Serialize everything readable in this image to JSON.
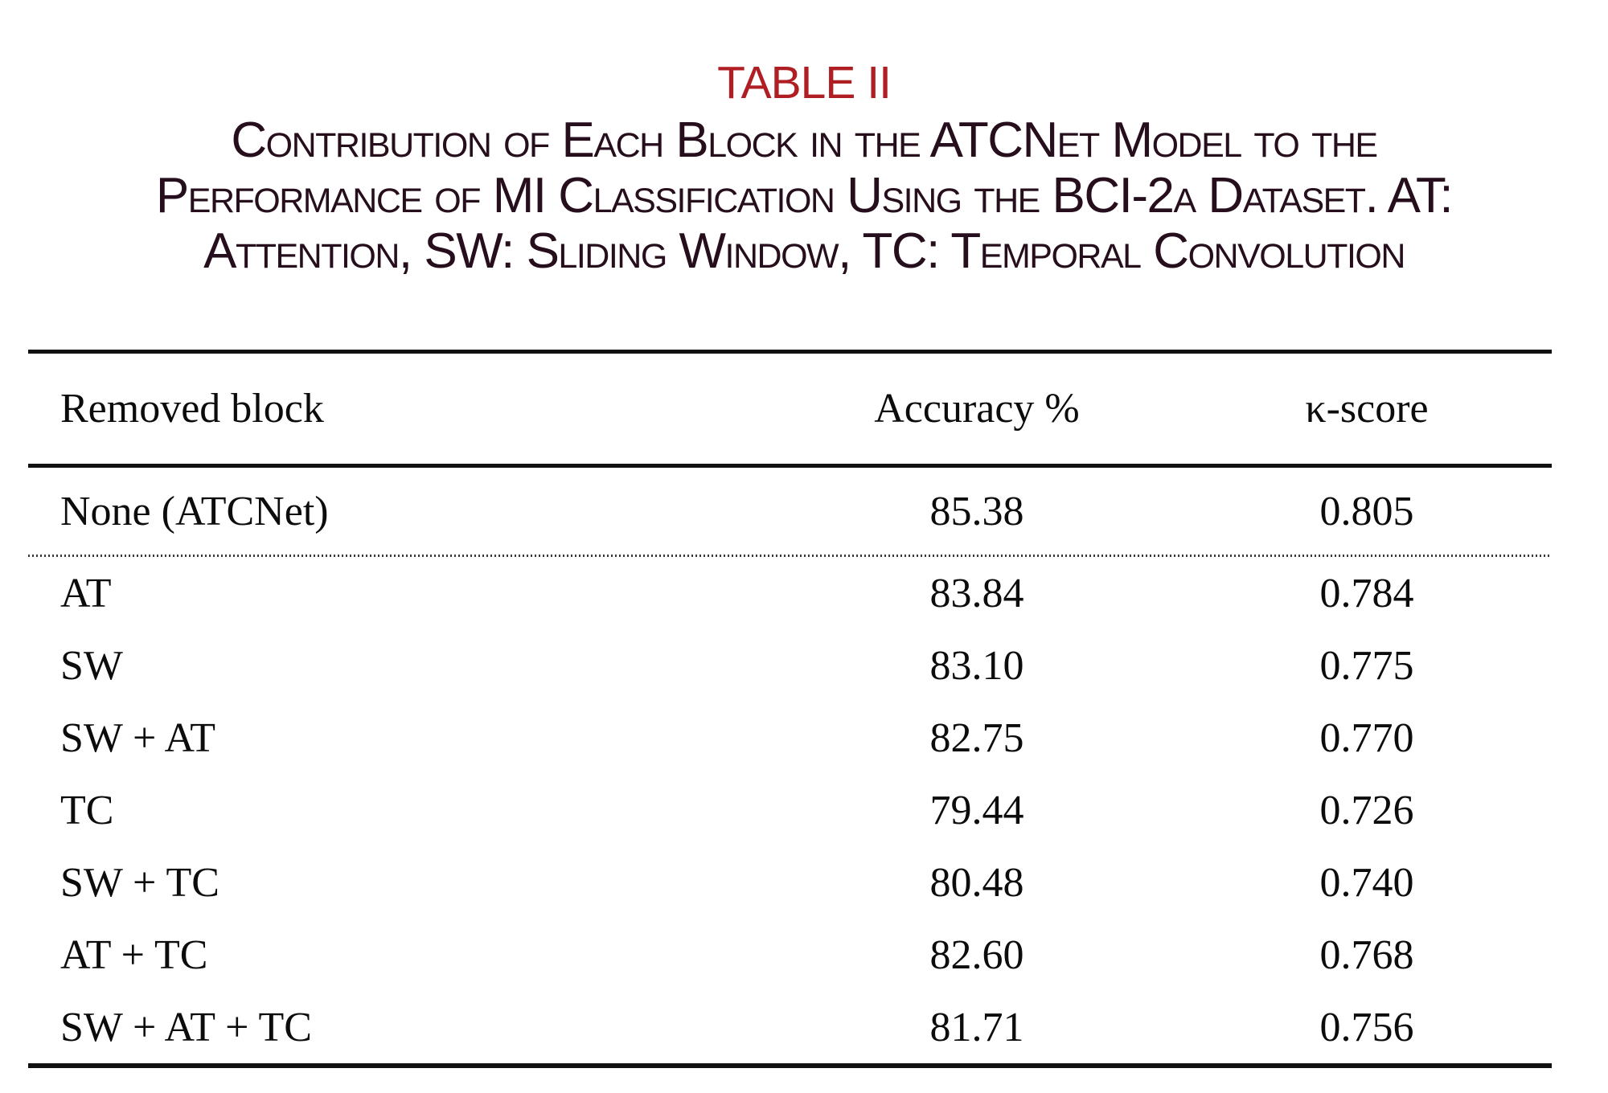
{
  "title": "TABLE II",
  "caption_lines": [
    "Contribution of Each Block in the ATCNet Model to the",
    "Performance of MI Classification Using the BCI-2a Dataset. AT:",
    "Attention, SW: Sliding Window, TC: Temporal Convolution"
  ],
  "colors": {
    "title_red": "#af1e23",
    "caption_text": "#260e1d",
    "table_text": "#0c0c0c",
    "rule": "#111111"
  },
  "table": {
    "columns": {
      "removed_block": "Removed block",
      "accuracy": "Accuracy %",
      "kappa": "κ-score"
    },
    "baseline_row": {
      "label": "None (ATCNet)",
      "accuracy": "85.38",
      "kappa": "0.805"
    },
    "rows": [
      {
        "label": "AT",
        "accuracy": "83.84",
        "kappa": "0.784"
      },
      {
        "label": "SW",
        "accuracy": "83.10",
        "kappa": "0.775"
      },
      {
        "label": "SW + AT",
        "accuracy": "82.75",
        "kappa": "0.770"
      },
      {
        "label": "TC",
        "accuracy": "79.44",
        "kappa": "0.726"
      },
      {
        "label": "SW + TC",
        "accuracy": "80.48",
        "kappa": "0.740"
      },
      {
        "label": "AT + TC",
        "accuracy": "82.60",
        "kappa": "0.768"
      },
      {
        "label": "SW + AT + TC",
        "accuracy": "81.71",
        "kappa": "0.756"
      }
    ]
  }
}
